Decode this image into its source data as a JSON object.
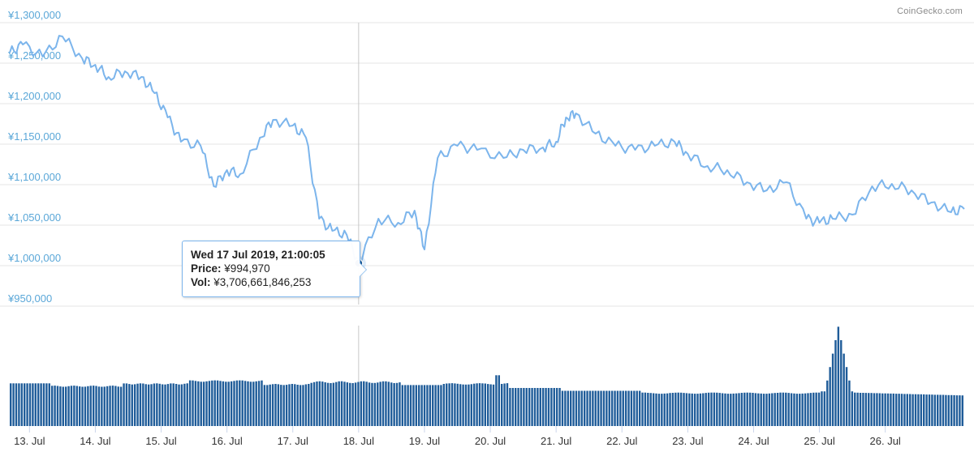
{
  "credit": "CoinGecko.com",
  "tooltip": {
    "date": "Wed 17 Jul 2019, 21:00:05",
    "price_label": "Price:",
    "price_value": "¥994,970",
    "vol_label": "Vol:",
    "vol_value": "¥3,706,661,846,253"
  },
  "colors": {
    "price_line": "#7cb5ec",
    "volume_bar": "#1f5c99",
    "marker": "#1a5c9e",
    "axis_text": "#5aa7d8"
  },
  "chart_data": [
    {
      "type": "line",
      "title": "",
      "xlabel": "",
      "ylabel": "",
      "grid": true,
      "ylim": [
        950000,
        1300000
      ],
      "xlim": [
        12.7,
        27.2
      ],
      "y_ticks": [
        950000,
        1000000,
        1050000,
        1100000,
        1150000,
        1200000,
        1250000,
        1300000
      ],
      "y_tick_labels": [
        "¥950,000",
        "¥1,000,000",
        "¥1,050,000",
        "¥1,100,000",
        "¥1,150,000",
        "¥1,200,000",
        "¥1,250,000",
        "¥1,300,000"
      ],
      "x_ticks": [
        13,
        14,
        15,
        16,
        17,
        18,
        19,
        20,
        21,
        22,
        23,
        24,
        25,
        26
      ],
      "x_tick_labels": [
        "13. Jul",
        "14. Jul",
        "15. Jul",
        "16. Jul",
        "17. Jul",
        "18. Jul",
        "19. Jul",
        "20. Jul",
        "21. Jul",
        "22. Jul",
        "23. Jul",
        "24. Jul",
        "25. Jul",
        "26. Jul"
      ],
      "x": [
        12.7,
        12.9,
        13.2,
        13.5,
        13.8,
        14.0,
        14.2,
        14.45,
        14.7,
        14.9,
        15.1,
        15.3,
        15.6,
        15.8,
        16.0,
        16.2,
        16.5,
        16.7,
        17.0,
        17.2,
        17.4,
        17.6,
        17.82,
        18.0,
        18.3,
        18.6,
        18.85,
        19.0,
        19.2,
        19.5,
        19.8,
        20.2,
        20.5,
        20.8,
        21.0,
        21.15,
        21.3,
        21.6,
        21.9,
        22.2,
        22.5,
        22.8,
        23.0,
        23.3,
        23.6,
        23.9,
        24.2,
        24.5,
        24.8,
        25.0,
        25.2,
        25.5,
        25.8,
        26.1,
        26.4,
        26.7,
        27.0,
        27.2
      ],
      "y": [
        1255000,
        1265000,
        1250000,
        1275000,
        1248000,
        1240000,
        1225000,
        1232000,
        1225000,
        1205000,
        1175000,
        1145000,
        1140000,
        1090000,
        1110000,
        1105000,
        1150000,
        1172000,
        1165000,
        1150000,
        1050000,
        1035000,
        1030000,
        994970,
        1050000,
        1045000,
        1060000,
        1012000,
        1125000,
        1140000,
        1135000,
        1125000,
        1135000,
        1138000,
        1145000,
        1175000,
        1180000,
        1155000,
        1140000,
        1135000,
        1140000,
        1145000,
        1130000,
        1115000,
        1110000,
        1095000,
        1085000,
        1095000,
        1050000,
        1045000,
        1050000,
        1055000,
        1090000,
        1093000,
        1085000,
        1070000,
        1058000,
        1062000
      ],
      "highlight": {
        "x": 18.0,
        "y": 994970
      }
    },
    {
      "type": "bar",
      "title": "",
      "xlabel": "",
      "ylabel": "",
      "note": "volume",
      "x_start": 12.7,
      "x_step": 0.0416,
      "values": []
    }
  ]
}
